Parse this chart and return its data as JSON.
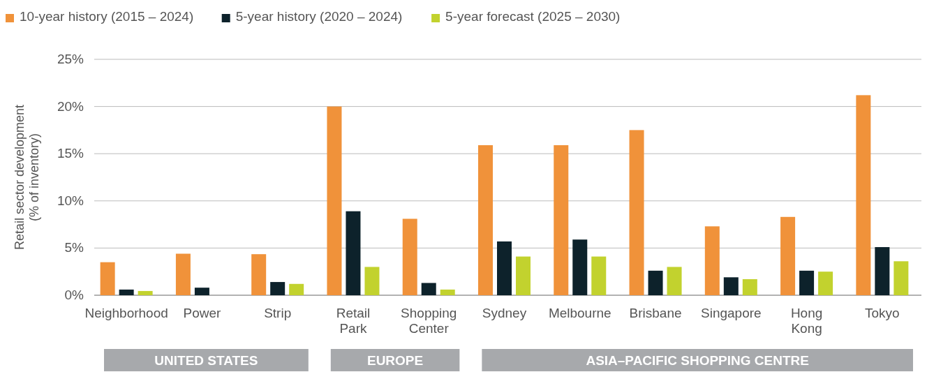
{
  "chart_data": {
    "type": "bar",
    "ylabel": "Retail sector development (% of inventory)",
    "categories": [
      "Neighborhood",
      "Power",
      "Strip",
      "Retail Park",
      "Shopping Center",
      "Sydney",
      "Melbourne",
      "Brisbane",
      "Singapore",
      "Hong Kong",
      "Tokyo"
    ],
    "series": [
      {
        "name": "10-year history (2015 – 2024)",
        "color": "#f0923a",
        "values": [
          3.5,
          4.4,
          4.35,
          20.0,
          8.1,
          15.9,
          15.9,
          17.5,
          7.3,
          8.3,
          21.2
        ]
      },
      {
        "name": "5-year history (2020 – 2024)",
        "color": "#0d222b",
        "values": [
          0.6,
          0.8,
          1.4,
          8.9,
          1.3,
          5.7,
          5.9,
          2.6,
          1.9,
          2.6,
          5.1
        ]
      },
      {
        "name": "5-year forecast (2025 – 2030)",
        "color": "#c2d22e",
        "values": [
          0.45,
          null,
          1.2,
          3.0,
          0.6,
          4.1,
          4.1,
          3.0,
          1.7,
          2.5,
          3.6
        ]
      }
    ],
    "ylim": [
      0,
      25
    ],
    "yticks": [
      {
        "value": 0,
        "label": "0%"
      },
      {
        "value": 5,
        "label": "5%"
      },
      {
        "value": 10,
        "label": "10%"
      },
      {
        "value": 15,
        "label": "15%"
      },
      {
        "value": 20,
        "label": "20%"
      },
      {
        "value": 25,
        "label": "25%"
      }
    ],
    "grid": "y",
    "legend": "top left",
    "annotations": [
      "UNITED STATES",
      "EUROPE",
      "ASIA–PACIFIC SHOPPING CENTRE"
    ]
  }
}
